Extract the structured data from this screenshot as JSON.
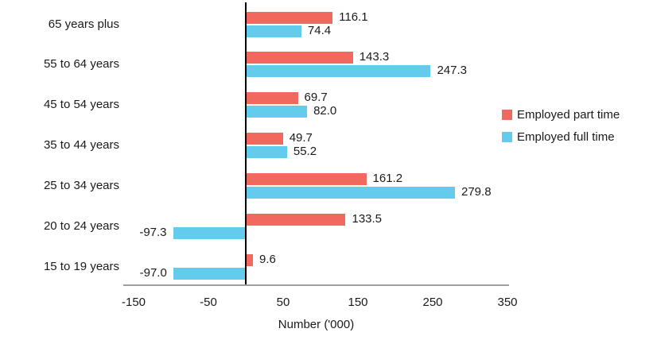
{
  "chart_data": {
    "type": "bar",
    "orientation": "horizontal",
    "title": "",
    "xlabel": "Number ('000)",
    "ylabel": "",
    "xlim": [
      -150,
      350
    ],
    "xticks": [
      -150,
      -50,
      50,
      150,
      250,
      350
    ],
    "grid": false,
    "legend_position": "right",
    "value_labels": true,
    "value_decimals": 1,
    "categories": [
      "65 years plus",
      "55 to 64 years",
      "45 to 54 years",
      "35 to 44 years",
      "25 to 34 years",
      "20 to 24 years",
      "15 to 19 years"
    ],
    "series": [
      {
        "name": "Employed part time",
        "color": "#F1695E",
        "values": [
          116.1,
          143.3,
          69.7,
          49.7,
          161.2,
          133.5,
          9.6
        ]
      },
      {
        "name": "Employed full time",
        "color": "#63CBEB",
        "values": [
          74.4,
          247.3,
          82.0,
          55.2,
          279.8,
          -97.3,
          -97.0
        ]
      }
    ]
  },
  "colors": {
    "part_time": "#F1695E",
    "full_time": "#63CBEB",
    "zero_axis": "#000000",
    "baseline_axis": "#9e9e9e",
    "text": "#1a1a1a",
    "background": "#ffffff"
  }
}
